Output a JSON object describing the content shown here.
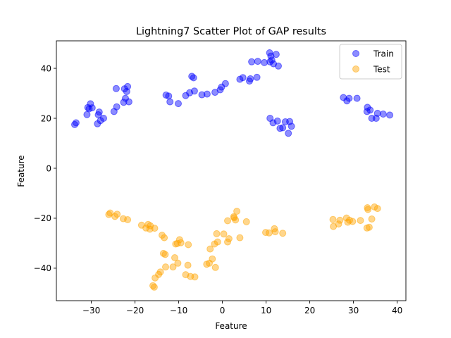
{
  "chart_data": {
    "type": "scatter",
    "title": "Lightning7 Scatter Plot of GAP results",
    "xlabel": "Feature",
    "ylabel": "Feature",
    "xlim": [
      -38,
      42
    ],
    "ylim": [
      -53,
      51
    ],
    "xticks": [
      -30,
      -20,
      -10,
      0,
      10,
      20,
      30,
      40
    ],
    "yticks": [
      -40,
      -20,
      0,
      20,
      40
    ],
    "grid": false,
    "legend_position": "top-right",
    "series": [
      {
        "name": "Train",
        "color": "#0000ff",
        "points": [
          [
            -33.8,
            17.5
          ],
          [
            -33.5,
            18.2
          ],
          [
            -31.0,
            21.5
          ],
          [
            -30.8,
            24.3
          ],
          [
            -30.5,
            23.8
          ],
          [
            -30.2,
            25.8
          ],
          [
            -29.8,
            24.2
          ],
          [
            -28.6,
            17.8
          ],
          [
            -28.4,
            21.4
          ],
          [
            -28.2,
            22.5
          ],
          [
            -27.9,
            19.1
          ],
          [
            -27.2,
            20.0
          ],
          [
            -24.8,
            22.7
          ],
          [
            -24.3,
            31.9
          ],
          [
            -24.2,
            24.6
          ],
          [
            -22.6,
            26.4
          ],
          [
            -22.4,
            31.8
          ],
          [
            -22.2,
            28.0
          ],
          [
            -21.9,
            30.7
          ],
          [
            -21.7,
            32.7
          ],
          [
            -21.4,
            26.6
          ],
          [
            -12.9,
            29.3
          ],
          [
            -12.3,
            28.9
          ],
          [
            -12.0,
            26.6
          ],
          [
            -10.1,
            25.9
          ],
          [
            -8.4,
            29.1
          ],
          [
            -7.5,
            30.2
          ],
          [
            -7.0,
            36.8
          ],
          [
            -6.6,
            36.2
          ],
          [
            -6.4,
            30.9
          ],
          [
            -4.7,
            29.4
          ],
          [
            -3.5,
            29.7
          ],
          [
            -1.7,
            30.4
          ],
          [
            -0.5,
            31.4
          ],
          [
            -0.2,
            32.5
          ],
          [
            0.7,
            33.9
          ],
          [
            4.0,
            35.6
          ],
          [
            4.7,
            36.3
          ],
          [
            6.2,
            34.9
          ],
          [
            6.4,
            35.8
          ],
          [
            6.7,
            42.6
          ],
          [
            7.9,
            36.4
          ],
          [
            8.1,
            42.8
          ],
          [
            9.6,
            42.3
          ],
          [
            10.8,
            46.2
          ],
          [
            10.9,
            42.6
          ],
          [
            11.1,
            44.9
          ],
          [
            11.3,
            43.3
          ],
          [
            11.7,
            41.8
          ],
          [
            12.3,
            45.6
          ],
          [
            12.8,
            40.9
          ],
          [
            10.9,
            20.0
          ],
          [
            11.6,
            18.2
          ],
          [
            12.6,
            18.9
          ],
          [
            13.2,
            16.0
          ],
          [
            13.8,
            16.2
          ],
          [
            14.4,
            18.6
          ],
          [
            15.1,
            14.0
          ],
          [
            15.4,
            18.7
          ],
          [
            15.8,
            16.8
          ],
          [
            27.7,
            28.3
          ],
          [
            28.5,
            27.0
          ],
          [
            29.0,
            28.0
          ],
          [
            30.8,
            28.0
          ],
          [
            33.1,
            22.7
          ],
          [
            33.2,
            24.4
          ],
          [
            33.8,
            23.3
          ],
          [
            34.2,
            20.0
          ],
          [
            35.2,
            20.0
          ],
          [
            35.5,
            22.0
          ],
          [
            36.8,
            21.7
          ],
          [
            38.3,
            21.3
          ]
        ]
      },
      {
        "name": "Test",
        "color": "#ffa500",
        "points": [
          [
            -26.0,
            -18.5
          ],
          [
            -25.7,
            -17.9
          ],
          [
            -24.6,
            -19.3
          ],
          [
            -24.1,
            -18.4
          ],
          [
            -22.7,
            -20.2
          ],
          [
            -21.7,
            -20.6
          ],
          [
            -18.5,
            -22.8
          ],
          [
            -17.5,
            -23.9
          ],
          [
            -17.0,
            -22.5
          ],
          [
            -16.6,
            -24.4
          ],
          [
            -16.5,
            -23.0
          ],
          [
            -15.5,
            -24.0
          ],
          [
            -15.9,
            -47.0
          ],
          [
            -15.6,
            -47.6
          ],
          [
            -15.4,
            -43.9
          ],
          [
            -14.6,
            -42.5
          ],
          [
            -14.2,
            -41.5
          ],
          [
            -13.8,
            -26.8
          ],
          [
            -13.5,
            -34.1
          ],
          [
            -13.3,
            -27.8
          ],
          [
            -13.1,
            -34.5
          ],
          [
            -13.0,
            -39.5
          ],
          [
            -11.3,
            -39.5
          ],
          [
            -10.9,
            -35.8
          ],
          [
            -10.7,
            -30.3
          ],
          [
            -10.3,
            -30.1
          ],
          [
            -10.2,
            -38.0
          ],
          [
            -9.8,
            -28.6
          ],
          [
            -9.5,
            -29.8
          ],
          [
            -8.4,
            -42.6
          ],
          [
            -7.9,
            -38.8
          ],
          [
            -7.8,
            -30.6
          ],
          [
            -7.3,
            -43.3
          ],
          [
            -6.3,
            -43.5
          ],
          [
            -3.6,
            -38.4
          ],
          [
            -3.0,
            -38.0
          ],
          [
            -2.8,
            -32.3
          ],
          [
            -2.3,
            -36.3
          ],
          [
            -1.8,
            -30.3
          ],
          [
            -1.6,
            -39.7
          ],
          [
            -1.3,
            -26.2
          ],
          [
            -1.1,
            -29.5
          ],
          [
            0.3,
            -26.3
          ],
          [
            1.2,
            -29.5
          ],
          [
            1.2,
            -21.0
          ],
          [
            1.5,
            -28.2
          ],
          [
            2.6,
            -19.4
          ],
          [
            2.7,
            -19.8
          ],
          [
            3.0,
            -20.7
          ],
          [
            3.3,
            -17.2
          ],
          [
            4.0,
            -27.8
          ],
          [
            5.5,
            -21.4
          ],
          [
            9.9,
            -25.7
          ],
          [
            10.7,
            -25.9
          ],
          [
            11.9,
            -24.2
          ],
          [
            12.1,
            -25.4
          ],
          [
            13.8,
            -26.0
          ],
          [
            25.3,
            -20.5
          ],
          [
            25.4,
            -23.3
          ],
          [
            26.6,
            -22.3
          ],
          [
            26.9,
            -20.8
          ],
          [
            28.4,
            -19.9
          ],
          [
            28.7,
            -21.6
          ],
          [
            29.1,
            -20.8
          ],
          [
            29.8,
            -21.3
          ],
          [
            31.6,
            -20.9
          ],
          [
            33.1,
            -23.9
          ],
          [
            33.2,
            -15.8
          ],
          [
            33.3,
            -16.5
          ],
          [
            33.6,
            -23.6
          ],
          [
            34.2,
            -20.3
          ],
          [
            34.8,
            -15.5
          ],
          [
            35.5,
            -16.1
          ]
        ]
      }
    ]
  }
}
